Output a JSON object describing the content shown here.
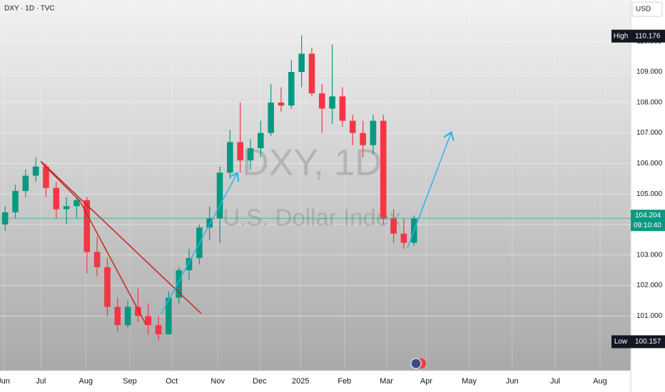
{
  "chart_data": {
    "type": "candlestick",
    "title": "DXY · 1D · TVC",
    "currency": "USD",
    "watermark": "DXY, 1D",
    "watermark_subtitle": "U.S. Dollar Index",
    "colors": {
      "up": "#089981",
      "down": "#f23645"
    },
    "open": [
      104.0,
      104.4,
      105.1,
      105.6,
      105.9,
      105.2,
      104.5,
      104.6,
      104.8,
      103.1,
      102.6,
      101.3,
      100.7,
      101.3,
      101.0,
      100.7,
      100.4,
      101.6,
      102.5,
      102.9,
      103.9,
      104.2,
      105.7,
      106.7,
      106.1,
      106.5,
      107.0,
      108.0,
      107.9,
      109.0,
      109.6,
      108.3,
      107.8,
      108.2,
      107.4,
      107.0,
      106.6,
      107.4,
      104.2,
      103.7,
      103.4
    ],
    "high": [
      104.6,
      105.3,
      105.8,
      106.2,
      106.0,
      105.4,
      104.9,
      104.9,
      104.9,
      103.6,
      102.9,
      101.6,
      101.5,
      101.9,
      101.4,
      101.0,
      101.8,
      102.6,
      103.2,
      104.0,
      104.6,
      105.9,
      107.1,
      108.0,
      106.8,
      107.4,
      108.6,
      108.5,
      109.4,
      110.2,
      109.8,
      108.6,
      109.9,
      108.5,
      107.6,
      107.4,
      107.6,
      107.6,
      104.5,
      104.2,
      104.3
    ],
    "low": [
      103.8,
      104.2,
      104.9,
      105.4,
      104.9,
      104.2,
      104.0,
      104.2,
      102.4,
      102.3,
      101.0,
      100.5,
      100.6,
      100.8,
      100.4,
      100.2,
      100.4,
      101.4,
      102.2,
      102.7,
      103.5,
      103.4,
      105.5,
      105.7,
      105.8,
      106.2,
      106.9,
      107.7,
      107.8,
      108.5,
      108.2,
      107.0,
      107.3,
      107.2,
      106.6,
      106.2,
      106.3,
      104.0,
      103.4,
      103.2,
      103.3
    ],
    "close": [
      104.4,
      105.1,
      105.6,
      105.9,
      105.2,
      104.5,
      104.6,
      104.8,
      103.1,
      102.6,
      101.3,
      100.7,
      101.3,
      101.0,
      100.7,
      100.4,
      101.6,
      102.5,
      102.9,
      103.9,
      104.2,
      105.7,
      106.7,
      106.1,
      106.5,
      107.0,
      108.0,
      107.9,
      109.0,
      109.6,
      108.3,
      107.8,
      108.2,
      107.4,
      107.0,
      106.6,
      107.4,
      104.2,
      103.7,
      103.4,
      104.2
    ],
    "xlim": [
      0,
      61.7
    ],
    "xticks": [
      {
        "value": 0.35,
        "label": "Jun"
      },
      {
        "value": 4.0,
        "label": "Jul"
      },
      {
        "value": 8.4,
        "label": "Aug"
      },
      {
        "value": 12.7,
        "label": "Sep"
      },
      {
        "value": 16.8,
        "label": "Oct"
      },
      {
        "value": 21.3,
        "label": "Nov"
      },
      {
        "value": 25.4,
        "label": "Dec"
      },
      {
        "value": 29.4,
        "label": "2025"
      },
      {
        "value": 33.7,
        "label": "Feb"
      },
      {
        "value": 37.8,
        "label": "Mar"
      },
      {
        "value": 41.7,
        "label": "Apr"
      },
      {
        "value": 45.9,
        "label": "May"
      },
      {
        "value": 50.1,
        "label": "Jun"
      },
      {
        "value": 54.3,
        "label": "Jul"
      },
      {
        "value": 58.7,
        "label": "Aug"
      }
    ],
    "ylim": [
      99.21,
      111.36
    ],
    "yticks": [
      {
        "value": 101,
        "label": "101.000"
      },
      {
        "value": 102,
        "label": "102.000"
      },
      {
        "value": 103,
        "label": "103.000"
      },
      {
        "value": 104,
        "label": "104.000"
      },
      {
        "value": 105,
        "label": "105.000"
      },
      {
        "value": 106,
        "label": "106.000"
      },
      {
        "value": 107,
        "label": "107.000"
      },
      {
        "value": 108,
        "label": "108.000"
      },
      {
        "value": 109,
        "label": "109.000"
      },
      {
        "value": 110,
        "label": "110.000"
      }
    ],
    "grid": true,
    "high_marker": {
      "label": "High",
      "value": 110.176
    },
    "low_marker": {
      "label": "Low",
      "value": 100.157
    },
    "last_price": {
      "value": 104.204,
      "countdown": "09:10:40"
    }
  }
}
